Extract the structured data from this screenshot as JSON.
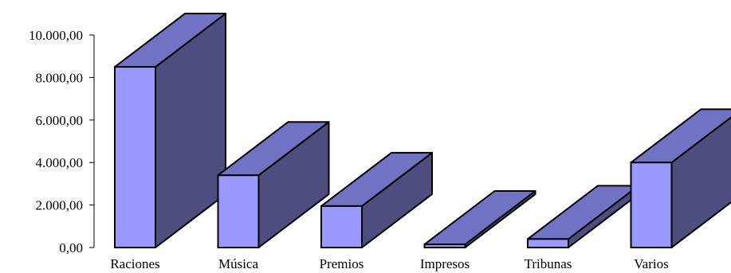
{
  "chart_data": {
    "type": "bar",
    "title": "",
    "xlabel": "",
    "ylabel": "",
    "categories": [
      "Raciones",
      "Música",
      "Premios",
      "Impresos",
      "Tribunas",
      "Varios"
    ],
    "values": [
      8500,
      3400,
      1950,
      150,
      400,
      4000
    ],
    "ylim": [
      0,
      10000
    ],
    "yticks": [
      0,
      2000,
      4000,
      6000,
      8000,
      10000
    ],
    "ytick_labels": [
      "0,00",
      "2.000,00",
      "4.000,00",
      "6.000,00",
      "8.000,00",
      "10.000,00"
    ],
    "grid": false,
    "legend": "none",
    "colors": {
      "front": "#9999ff",
      "top": "#7272c4",
      "side": "#4d4d80",
      "outline": "#000000"
    }
  }
}
